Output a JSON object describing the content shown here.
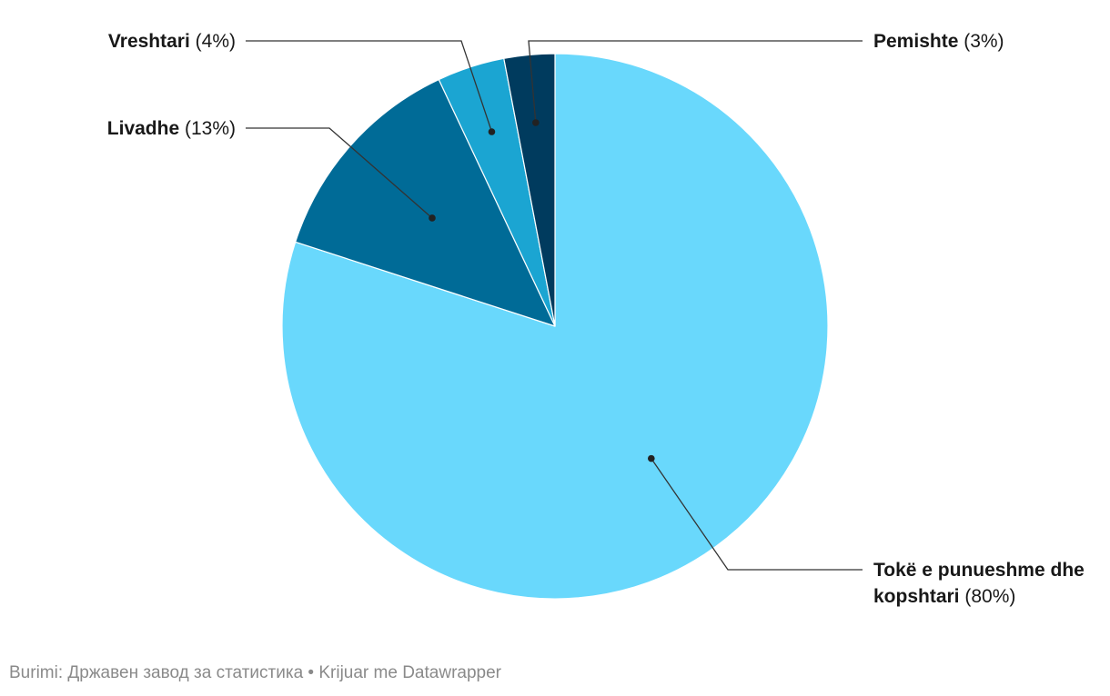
{
  "chart_data": {
    "type": "pie",
    "slices": [
      {
        "label": "Tokë e punueshme dhe kopshtari",
        "label_lines": [
          "Tokë e punueshme dhe",
          "kopshtari"
        ],
        "value": 80,
        "pct_label": "(80%)",
        "color": "#69d8fc"
      },
      {
        "label": "Livadhe",
        "label_lines": [
          "Livadhe"
        ],
        "value": 13,
        "pct_label": "(13%)",
        "color": "#006b97"
      },
      {
        "label": "Vreshtari",
        "label_lines": [
          "Vreshtari"
        ],
        "value": 4,
        "pct_label": "(4%)",
        "color": "#1ba5d2"
      },
      {
        "label": "Pemishte",
        "label_lines": [
          "Pemishte"
        ],
        "value": 3,
        "pct_label": "(3%)",
        "color": "#003b5e"
      }
    ]
  },
  "footer": {
    "source_label": "Burimi:",
    "source": "Државен завод за статистика",
    "separator": "•",
    "credit": "Krijuar me Datawrapper"
  }
}
